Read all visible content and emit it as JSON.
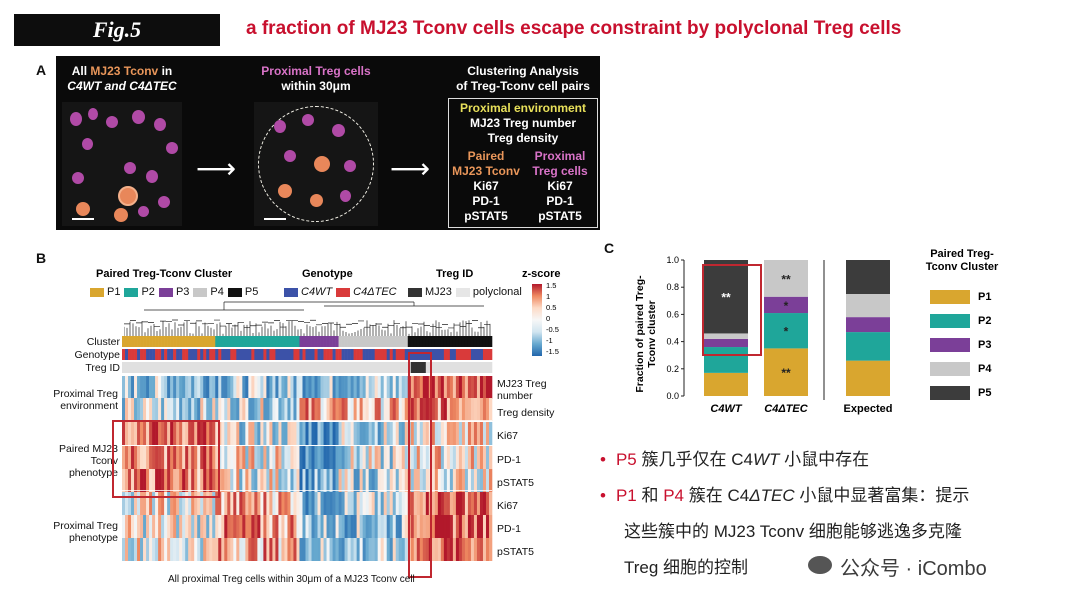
{
  "figure_label": "Fig.5",
  "headline": "a fraction of MJ23 Tconv cells escape constraint by polyclonal Treg cells",
  "panel_a": {
    "label": "A",
    "step1_pre": "All ",
    "step1_hl": "MJ23 Tconv",
    "step1_post": " in",
    "step1_line2": "C4WT and C4ΔTEC",
    "step2_line1": "Proximal Treg cells",
    "step2_line2": "within 30μm",
    "step3_line1": "Clustering Analysis",
    "step3_line2": "of Treg-Tconv cell pairs",
    "env_title": "Proximal environment",
    "env_items": [
      "MJ23 Treg number",
      "Treg density"
    ],
    "col1_title": [
      "Paired",
      "MJ23 Tconv"
    ],
    "col2_title": [
      "Proximal",
      "Treg cells"
    ],
    "markers": [
      "Ki67",
      "PD-1",
      "pSTAT5"
    ]
  },
  "panel_b": {
    "label": "B",
    "cluster_title": "Paired Treg-Tconv Cluster",
    "genotype_title": "Genotype",
    "tregid_title": "Treg ID",
    "zscore_title": "z-score",
    "zscore_ticks": [
      "1.5",
      "1",
      "0.5",
      "0",
      "-0.5",
      "-1",
      "-1.5"
    ],
    "cluster_legend": [
      {
        "name": "P1",
        "color": "#d9a62f"
      },
      {
        "name": "P2",
        "color": "#1fa69a"
      },
      {
        "name": "P3",
        "color": "#7b3f98"
      },
      {
        "name": "P4",
        "color": "#c8c8c8"
      },
      {
        "name": "P5",
        "color": "#111111"
      }
    ],
    "genotype_legend": [
      {
        "name": "C4WT",
        "color": "#3c52a8"
      },
      {
        "name": "C4ΔTEC",
        "color": "#d93a3a"
      }
    ],
    "tregid_legend": [
      {
        "name": "MJ23",
        "color": "#333333"
      },
      {
        "name": "polyclonal",
        "color": "#e6e6e6"
      }
    ],
    "annotation_rows": [
      "Cluster",
      "Genotype",
      "Treg ID"
    ],
    "group_labels": [
      "Proximal Treg environment",
      "Paired MJ23 Tconv phenotype",
      "Proximal Treg phenotype"
    ],
    "row_labels": [
      "MJ23 Treg number",
      "Treg density",
      "Ki67",
      "PD-1",
      "pSTAT5",
      "Ki67",
      "PD-1",
      "pSTAT5"
    ],
    "xlabel": "All proximal Treg cells within 30μm of a MJ23 Tconv cell"
  },
  "panel_c": {
    "label": "C",
    "chart_data": {
      "type": "bar",
      "stacked": true,
      "categories": [
        "C4WT",
        "C4ΔTEC",
        "Expected"
      ],
      "ylabel": "Fraction of paired Treg-Tconv cluster",
      "ylim": [
        0,
        1
      ],
      "yticks": [
        "0.0",
        "0.2",
        "0.4",
        "0.6",
        "0.8",
        "1.0"
      ],
      "series": [
        {
          "name": "P1",
          "color": "#d9a62f",
          "values": [
            0.17,
            0.35,
            0.26
          ]
        },
        {
          "name": "P2",
          "color": "#1fa69a",
          "values": [
            0.19,
            0.26,
            0.21
          ]
        },
        {
          "name": "P3",
          "color": "#7b3f98",
          "values": [
            0.06,
            0.12,
            0.11
          ]
        },
        {
          "name": "P4",
          "color": "#c8c8c8",
          "values": [
            0.04,
            0.27,
            0.17
          ]
        },
        {
          "name": "P5",
          "color": "#3c3c3c",
          "values": [
            0.54,
            0.0,
            0.25
          ]
        }
      ],
      "annotations": [
        {
          "category": "C4WT",
          "series": "P5",
          "text": "**"
        },
        {
          "category": "C4ΔTEC",
          "series": "P4",
          "text": "**"
        },
        {
          "category": "C4ΔTEC",
          "series": "P3",
          "text": "*"
        },
        {
          "category": "C4ΔTEC",
          "series": "P2",
          "text": "*"
        },
        {
          "category": "C4ΔTEC",
          "series": "P1",
          "text": "**"
        }
      ],
      "legend_title": "Paired Treg-Tconv Cluster"
    }
  },
  "bullets": {
    "b1_a": "P5",
    "b1_b": " 簇几乎仅在 C4",
    "b1_c": "WT",
    "b1_d": " 小鼠中存在",
    "b2_a": "P1",
    "b2_b": " 和 ",
    "b2_c": "P4",
    "b2_d": " 簇在 C4",
    "b2_e": "ΔTEC",
    "b2_f": " 小鼠中显著富集：提示",
    "b2_line2": "这些簇中的 MJ23 Tconv 细胞能够逃逸多克隆",
    "b2_line3": "Treg 细胞的控制"
  },
  "watermark": "公众号 · iCombo"
}
